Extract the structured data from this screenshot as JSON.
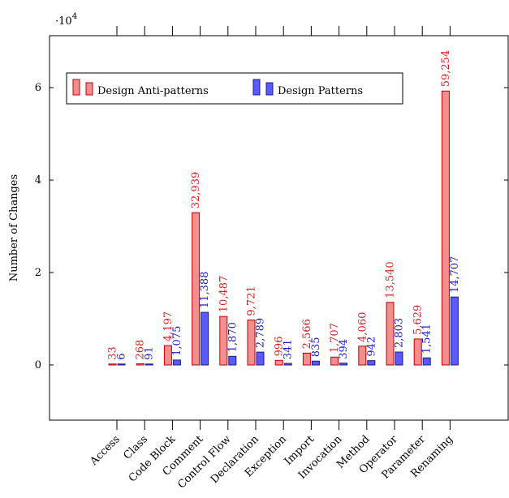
{
  "chart_data": {
    "type": "bar",
    "categories": [
      "Access",
      "Class",
      "Code Block",
      "Comment",
      "Control Flow",
      "Declaration",
      "Exception",
      "Import",
      "Invocation",
      "Method",
      "Operator",
      "Parameter",
      "Renaming"
    ],
    "series": [
      {
        "name": "Design Anti-patterns",
        "values": [
          33,
          268,
          4197,
          32939,
          10487,
          9721,
          996,
          2566,
          1707,
          4060,
          13540,
          5629,
          59254
        ],
        "labels": [
          "33",
          "268",
          "4,197",
          "32,939",
          "10,487",
          "9,721",
          "996",
          "2,566",
          "1,707",
          "4,060",
          "13,540",
          "5,629",
          "59,254"
        ],
        "color": "#f28e8e",
        "stroke": "#c00000",
        "label_color": "#d62020"
      },
      {
        "name": "Design Patterns",
        "values": [
          6,
          91,
          1075,
          11388,
          1870,
          2789,
          341,
          835,
          394,
          942,
          2803,
          1541,
          14707
        ],
        "labels": [
          "6",
          "91",
          "1,075",
          "11,388",
          "1,870",
          "2,789",
          "341",
          "835",
          "394",
          "942",
          "2,803",
          "1,541",
          "14,707"
        ],
        "color": "#5a5aff",
        "stroke": "#1a1a8c",
        "label_color": "#1a1abf"
      }
    ],
    "xlabel": "",
    "ylabel": "Number of Changes",
    "ylim": [
      -12000,
      72000
    ],
    "yticks": [
      0,
      20000,
      40000,
      60000
    ],
    "ytick_labels": [
      "0",
      "2",
      "4",
      "6"
    ],
    "scale_label": "·10",
    "scale_exponent": "4",
    "legend_position": "top-left",
    "grid": false
  }
}
